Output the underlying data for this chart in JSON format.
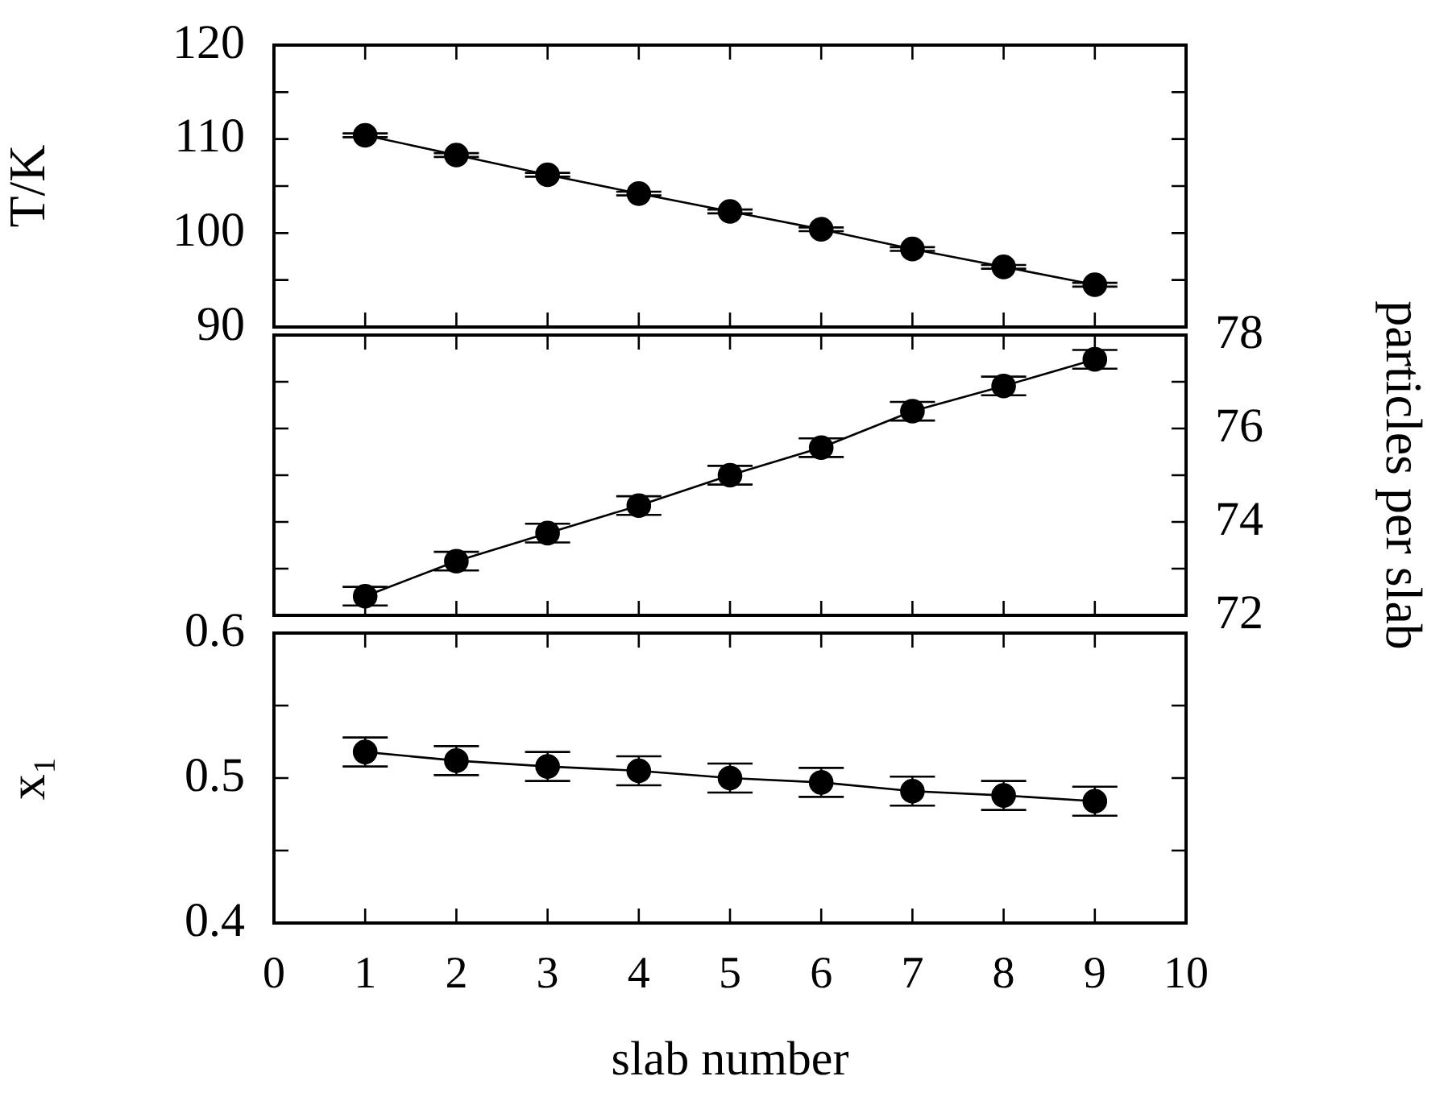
{
  "chart_data": [
    {
      "type": "line",
      "ylabel": "T/K",
      "x": [
        1,
        2,
        3,
        4,
        5,
        6,
        7,
        8,
        9
      ],
      "xlim": [
        0,
        10
      ],
      "xticks": [
        0,
        1,
        2,
        3,
        4,
        5,
        6,
        7,
        8,
        9,
        10
      ],
      "ylim": [
        90,
        120
      ],
      "yticks": [
        90,
        {
          "value": 95,
          "label": null
        },
        100,
        {
          "value": 105,
          "label": null
        },
        110,
        {
          "value": 115,
          "label": null
        },
        120
      ],
      "tick_labels": "y",
      "marker": "circle",
      "line_style": "solid",
      "legend": false,
      "series": [
        {
          "color": "#000000",
          "values": [
            110.4,
            108.3,
            106.2,
            104.2,
            102.3,
            100.4,
            98.3,
            96.4,
            94.5
          ],
          "errors": [
            0.2,
            0.2,
            0.2,
            0.2,
            0.2,
            0.2,
            0.2,
            0.2,
            0.2
          ]
        }
      ]
    },
    {
      "type": "line",
      "ylabel": "particles per slab",
      "categories": [
        null,
        null,
        null,
        null,
        null,
        null,
        null,
        null,
        null
      ],
      "ylim": [
        72,
        78
      ],
      "yticks": [
        72,
        {
          "value": 73,
          "label": null
        },
        74,
        {
          "value": 75,
          "label": null
        },
        76,
        {
          "value": 77,
          "label": null
        },
        78
      ],
      "marker": "circle",
      "line_style": "solid",
      "legend": false,
      "series": [
        {
          "color": "#000000",
          "values": [
            72.41,
            73.16,
            73.76,
            74.35,
            75.0,
            75.59,
            76.37,
            76.91,
            77.48
          ],
          "errors": [
            0.2,
            0.2,
            0.2,
            0.2,
            0.2,
            0.2,
            0.2,
            0.2,
            0.2
          ]
        }
      ]
    },
    {
      "type": "line",
      "ylabel": "x₁",
      "xlabel": "slab number",
      "x": [
        1,
        2,
        3,
        4,
        5,
        6,
        7,
        8,
        9
      ],
      "xlim": [
        0,
        10
      ],
      "xticks": [
        0,
        1,
        2,
        3,
        4,
        5,
        6,
        7,
        8,
        9,
        10
      ],
      "ylim": [
        0.4,
        0.6
      ],
      "yticks": [
        0.4,
        {
          "value": 0.45,
          "label": null
        },
        0.5,
        {
          "value": 0.55,
          "label": null
        },
        0.6
      ],
      "marker": "circle",
      "line_style": "solid",
      "legend": false,
      "series": [
        {
          "color": "#000000",
          "values": [
            0.518,
            0.512,
            0.508,
            0.505,
            0.5,
            0.497,
            0.491,
            0.488,
            0.484
          ],
          "errors": [
            0.01,
            0.01,
            0.01,
            0.01,
            0.01,
            0.01,
            0.01,
            0.01,
            0.01
          ]
        }
      ]
    }
  ]
}
